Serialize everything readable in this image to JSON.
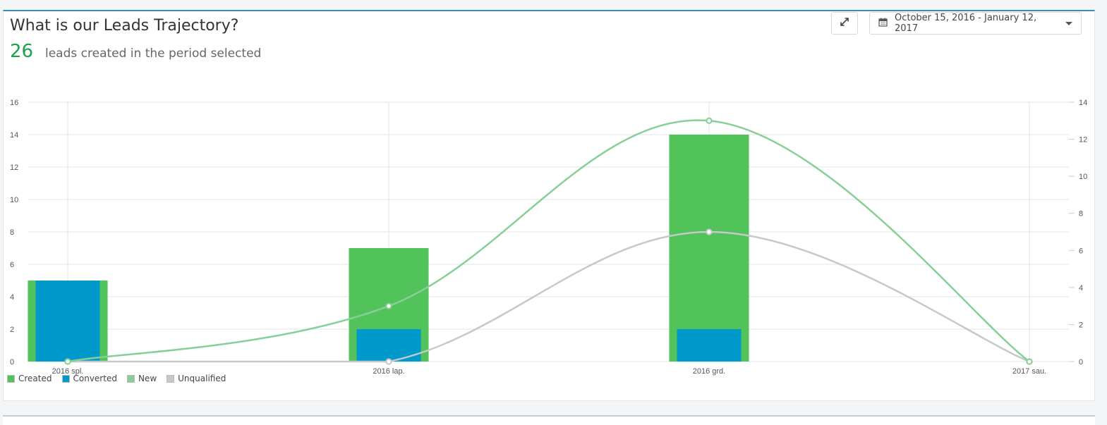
{
  "header": {
    "title": "What is our Leads Trajectory?",
    "kpi_value": "26",
    "kpi_text": "leads created in the period selected",
    "expand_icon": "expand-icon",
    "date_range": "October 15, 2016 - January 12, 2017",
    "calendar_icon": "calendar-icon"
  },
  "colors": {
    "created": "#52c25b",
    "converted": "#0099cc",
    "new": "#86cf97",
    "unqualified": "#c6c8ca",
    "kpi": "#1aa34a",
    "accent": "#3c8dbc"
  },
  "chart_data": {
    "type": "bar",
    "categories": [
      "2016 spl.",
      "2016 lap.",
      "2016 grd.",
      "2017 sau."
    ],
    "series": [
      {
        "name": "Created",
        "type": "bar",
        "axis": "left",
        "values": [
          5,
          7,
          14,
          0
        ]
      },
      {
        "name": "Converted",
        "type": "bar",
        "axis": "left",
        "values": [
          5,
          2,
          2,
          0
        ]
      },
      {
        "name": "New",
        "type": "line",
        "axis": "right",
        "values": [
          0,
          3,
          13,
          0
        ]
      },
      {
        "name": "Unqualified",
        "type": "line",
        "axis": "right",
        "values": [
          0,
          0,
          7,
          0
        ]
      }
    ],
    "ylim_left": [
      0,
      16
    ],
    "yticks_left": [
      0,
      2,
      4,
      6,
      8,
      10,
      12,
      14,
      16
    ],
    "ylim_right": [
      0,
      14
    ],
    "yticks_right": [
      0,
      2,
      4,
      6,
      8,
      10,
      12,
      14
    ],
    "grid": true,
    "legend_position": "bottom-left",
    "legend": [
      "Created",
      "Converted",
      "New",
      "Unqualified"
    ]
  }
}
